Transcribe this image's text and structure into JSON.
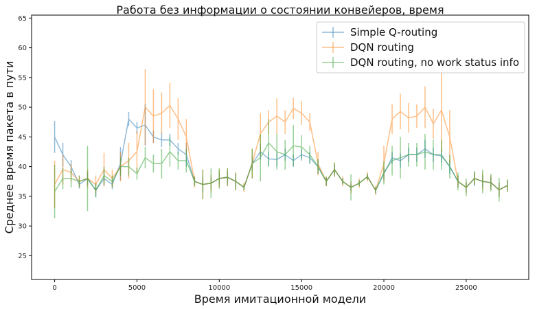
{
  "chart_data": {
    "type": "line",
    "title": "Работа без информации о состоянии конвейеров, время",
    "xlabel": "Время имитационной модели",
    "ylabel": "Среднее время пакета в пути",
    "xlim": [
      -1400,
      28800
    ],
    "ylim": [
      21,
      65.5
    ],
    "x_ticks": [
      0,
      5000,
      10000,
      15000,
      20000,
      25000
    ],
    "y_ticks": [
      25,
      30,
      35,
      40,
      45,
      50,
      55,
      60,
      65
    ],
    "grid": false,
    "legend_position": "top-right",
    "x": [
      0,
      500,
      1000,
      1500,
      2000,
      2500,
      3000,
      3500,
      4000,
      4500,
      5000,
      5500,
      6000,
      6500,
      7000,
      7500,
      8000,
      8500,
      9000,
      9500,
      10000,
      10500,
      11000,
      11500,
      12000,
      12500,
      13000,
      13500,
      14000,
      14500,
      15000,
      15500,
      16000,
      16500,
      17000,
      17500,
      18000,
      18500,
      19000,
      19500,
      20000,
      20500,
      21000,
      21500,
      22000,
      22500,
      23000,
      23500,
      24000,
      24500,
      25000,
      25500,
      26000,
      26500,
      27000,
      27500
    ],
    "series": [
      {
        "name": "Simple Q-routing",
        "color": "#1f77b4",
        "values": [
          45,
          42,
          40,
          37,
          38,
          36,
          38,
          37,
          40.5,
          48,
          46.5,
          47,
          45,
          44.5,
          44.5,
          43,
          42,
          37.5,
          37,
          37.2,
          38,
          38.2,
          37.5,
          36.5,
          40.5,
          42.5,
          41.3,
          41.2,
          42,
          41,
          42,
          41.5,
          40,
          37.5,
          39.5,
          37.5,
          36.5,
          37.2,
          38.3,
          36,
          38.8,
          41.5,
          41,
          42,
          42,
          43,
          42,
          41.8,
          40,
          37.5,
          36.5,
          38,
          37.5,
          37.3,
          36.1,
          36.8
        ],
        "errors": [
          2.7,
          2.0,
          1.1,
          0.7,
          1.0,
          1.1,
          1.2,
          0.8,
          2.8,
          1.2,
          1.0,
          3.5,
          1.0,
          1.2,
          1.0,
          1.0,
          2.0,
          0.8,
          1.2,
          1.0,
          1.0,
          1.0,
          1.2,
          0.5,
          1.2,
          1.3,
          1.2,
          1.2,
          1.0,
          1.0,
          1.0,
          1.0,
          1.2,
          0.7,
          0.8,
          0.5,
          0.6,
          0.5,
          0.5,
          0.5,
          1.0,
          1.0,
          1.2,
          1.2,
          1.2,
          1.5,
          1.2,
          1.2,
          1.2,
          1.0,
          0.8,
          1.2,
          1.0,
          1.0,
          1.2,
          1.0
        ]
      },
      {
        "name": "DQN routing",
        "color": "#ff7f0e",
        "values": [
          37,
          39.5,
          39,
          37.5,
          38,
          37,
          39.5,
          38,
          40,
          41,
          42.5,
          50,
          48.5,
          49,
          50.3,
          48,
          45,
          37.5,
          37,
          37.2,
          38,
          38.2,
          37.5,
          36.5,
          40.5,
          45.5,
          47.5,
          48.5,
          47.5,
          49.8,
          49,
          47.5,
          40.5,
          37.5,
          39.5,
          37.5,
          36.5,
          37.2,
          38.3,
          36,
          40.5,
          48,
          49.3,
          48.2,
          48.5,
          50,
          47.2,
          49.5,
          45,
          37.5,
          36.5,
          38,
          37.5,
          37.3,
          36.1,
          36.8
        ],
        "errors": [
          4.0,
          2.5,
          1.5,
          1.0,
          1.5,
          1.5,
          2.8,
          1.5,
          2.5,
          3.0,
          3.5,
          6.4,
          4.5,
          3.5,
          3.8,
          3.5,
          3.0,
          1.0,
          2.5,
          1.5,
          1.5,
          1.5,
          1.5,
          0.8,
          2.5,
          3.5,
          2.0,
          3.0,
          2.0,
          1.8,
          2.0,
          1.5,
          2.0,
          0.8,
          1.2,
          0.8,
          1.0,
          0.8,
          0.8,
          0.8,
          3.0,
          2.5,
          3.0,
          2.5,
          2.0,
          3.5,
          2.5,
          7.0,
          4.5,
          1.0,
          1.0,
          1.0,
          1.5,
          1.2,
          1.2,
          1.0
        ]
      },
      {
        "name": "DQN routing, no work status info",
        "color": "#2ca02c",
        "values": [
          35.8,
          38,
          38,
          37.5,
          38,
          36,
          38.5,
          37.5,
          40,
          40,
          38.8,
          41.5,
          40.5,
          40.5,
          42.5,
          41,
          41,
          37.5,
          37,
          37.2,
          38,
          38.2,
          37.5,
          36.5,
          40.5,
          41.5,
          44,
          42.5,
          42,
          43.5,
          43.3,
          42,
          40,
          37.5,
          39.5,
          37.5,
          36.5,
          37.2,
          38.3,
          36,
          39,
          41,
          41.5,
          42,
          42,
          42.5,
          42,
          42,
          40,
          37.5,
          36.5,
          38,
          37.5,
          37.3,
          36.1,
          36.8
        ],
        "errors": [
          4.5,
          1.8,
          1.5,
          1.0,
          5.5,
          1.2,
          1.5,
          1.0,
          1.5,
          1.5,
          1.0,
          1.8,
          1.5,
          2.5,
          2.5,
          1.5,
          2.0,
          0.7,
          2.5,
          2.5,
          1.7,
          1.5,
          1.5,
          0.5,
          2.5,
          4.0,
          4.0,
          3.0,
          2.5,
          3.5,
          2.0,
          1.5,
          1.2,
          0.8,
          1.2,
          0.5,
          2.2,
          0.5,
          0.5,
          0.5,
          2.0,
          2.5,
          3.5,
          2.0,
          2.0,
          3.0,
          2.5,
          2.5,
          2.0,
          1.5,
          1.5,
          1.2,
          2.0,
          1.5,
          2.0,
          1.0
        ]
      }
    ]
  }
}
